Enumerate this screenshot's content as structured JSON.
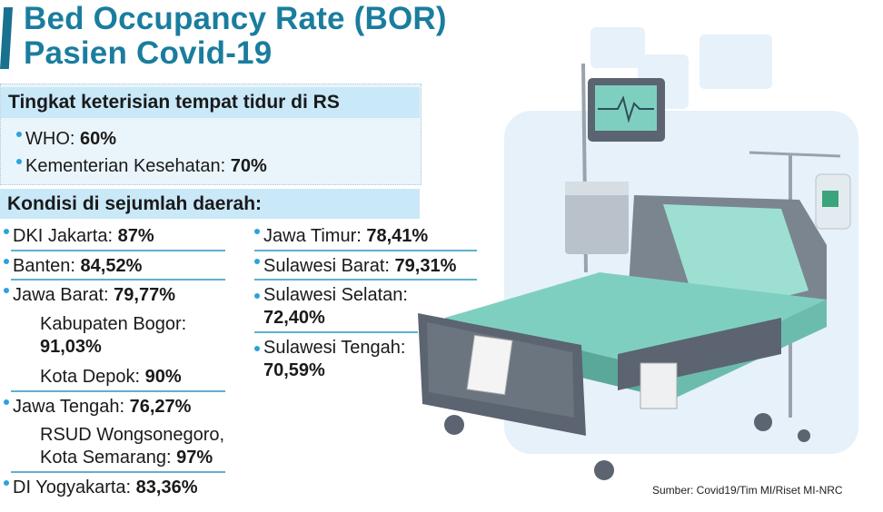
{
  "title": {
    "line1": "Bed Occupancy Rate (BOR)",
    "line2": "Pasien Covid-19"
  },
  "standard": {
    "heading": "Tingkat keterisian tempat tidur di RS",
    "items": [
      {
        "label": "WHO: ",
        "value": "60%"
      },
      {
        "label": "Kementerian Kesehatan: ",
        "value": "70%"
      }
    ]
  },
  "regions": {
    "heading": "Kondisi di sejumlah daerah:",
    "left": [
      {
        "label": "DKI Jakarta: ",
        "value": "87%"
      },
      {
        "label": "Banten: ",
        "value": "84,52%"
      },
      {
        "label": "Jawa Barat: ",
        "value": "79,77%"
      },
      {
        "label": "Kabupaten Bogor:",
        "value": "91,03%"
      },
      {
        "label": "Kota Depok: ",
        "value": "90%"
      },
      {
        "label": "Jawa Tengah: ",
        "value": "76,27%"
      },
      {
        "label": "RSUD Wongsonegoro,",
        "label2": "Kota Semarang: ",
        "value": "97%"
      },
      {
        "label": "DI Yogyakarta: ",
        "value": "83,36%"
      }
    ],
    "right": [
      {
        "label": "Jawa Timur: ",
        "value": "78,41%"
      },
      {
        "label": "Sulawesi Barat: ",
        "value": "79,31%"
      },
      {
        "label": "Sulawesi Selatan:",
        "value": "72,40%"
      },
      {
        "label": "Sulawesi Tengah:",
        "value": "70,59%"
      }
    ]
  },
  "source": "Sumber: Covid19/Tim MI/Riset MI-NRC",
  "colors": {
    "title": "#1a7d9e",
    "band": "#c9e8f8",
    "bullet": "#2aa3dc",
    "mattress": "#7fcfc0"
  }
}
